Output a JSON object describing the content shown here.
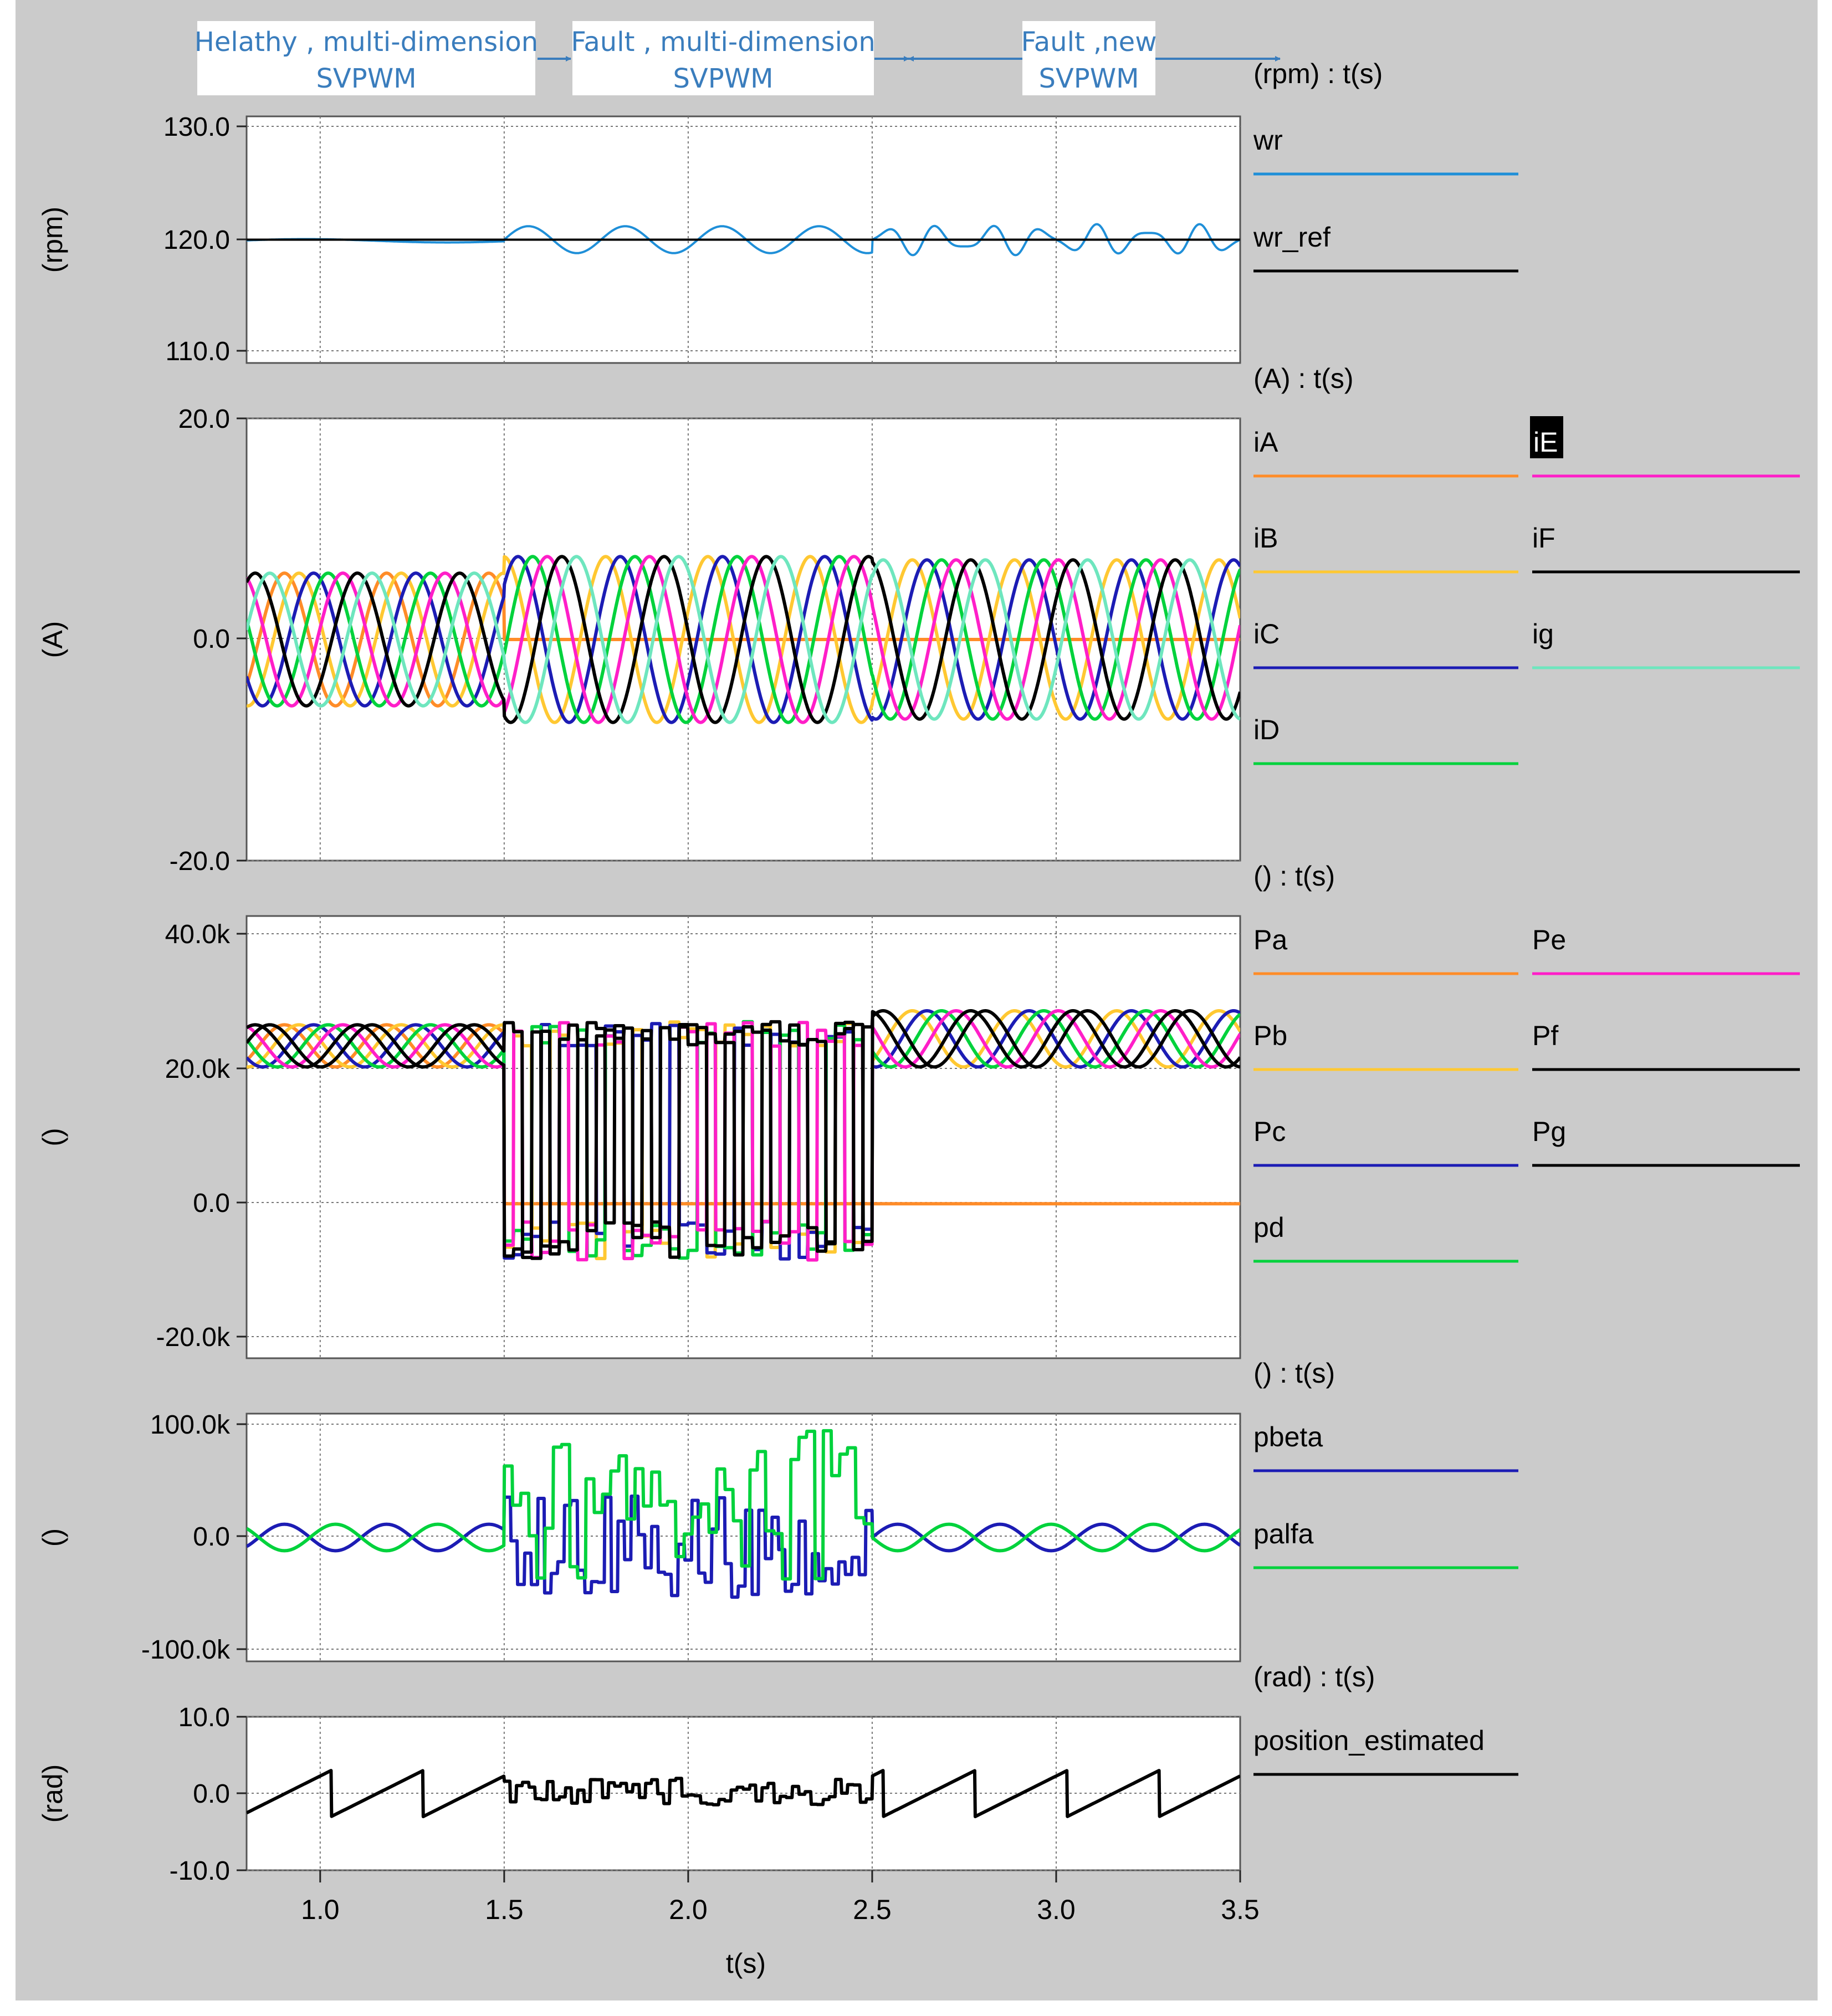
{
  "annotations": [
    {
      "line1": "Helathy , multi-dimension",
      "line2": "SVPWM"
    },
    {
      "line1": "Fault , multi-dimension",
      "line2": "SVPWM"
    },
    {
      "line1": "Fault ,new",
      "line2": "SVPWM"
    }
  ],
  "colors": {
    "background": "#cbcbcb",
    "plot_bg": "#ffffff",
    "annotation_text": "#3a7dbd",
    "arrow": "#3a7dbd"
  },
  "x_axis": {
    "label": "t(s)",
    "ticks": [
      "1.0",
      "1.5",
      "2.0",
      "2.5",
      "3.0",
      "3.5"
    ],
    "range": [
      0.8,
      3.5
    ]
  },
  "chart_data": [
    {
      "type": "line",
      "header": "(rpm) : t(s)",
      "ylabel": "(rpm)",
      "yticks": [
        "130.0",
        "120.0",
        "110.0"
      ],
      "ylim": [
        109.0,
        131.0
      ],
      "series": [
        {
          "name": "wr",
          "color": "#1f8fd8"
        },
        {
          "name": "wr_ref",
          "color": "#000000"
        }
      ]
    },
    {
      "type": "line",
      "header": "(A) : t(s)",
      "ylabel": "(A)",
      "yticks": [
        "20.0",
        "0.0",
        "-20.0"
      ],
      "ylim": [
        -20.0,
        20.0
      ],
      "series": [
        {
          "name": "iA",
          "color": "#ff8c28"
        },
        {
          "name": "iB",
          "color": "#ffc832"
        },
        {
          "name": "iC",
          "color": "#1c1cb4"
        },
        {
          "name": "iD",
          "color": "#00d23c"
        },
        {
          "name": "iE",
          "color": "#ff1ec8"
        },
        {
          "name": "iF",
          "color": "#000000"
        },
        {
          "name": "ig",
          "color": "#6ee6be"
        }
      ]
    },
    {
      "type": "line",
      "header": "() : t(s)",
      "ylabel": "()",
      "yticks": [
        "40.0k",
        "20.0k",
        "0.0",
        "-20.0k"
      ],
      "ylim": [
        -22000,
        41000
      ],
      "series": [
        {
          "name": "Pa",
          "color": "#ff8c28"
        },
        {
          "name": "Pb",
          "color": "#ffc832"
        },
        {
          "name": "Pc",
          "color": "#1c1cb4"
        },
        {
          "name": "pd",
          "color": "#00d23c"
        },
        {
          "name": "Pe",
          "color": "#ff1ec8"
        },
        {
          "name": "Pf",
          "color": "#000000"
        },
        {
          "name": "Pg",
          "color": "#000000"
        }
      ]
    },
    {
      "type": "line",
      "header": "() : t(s)",
      "ylabel": "()",
      "yticks": [
        "100.0k",
        "0.0",
        "-100.0k"
      ],
      "ylim": [
        -103000,
        103000
      ],
      "series": [
        {
          "name": "pbeta",
          "color": "#1c1cb4"
        },
        {
          "name": "palfa",
          "color": "#00d23c"
        }
      ]
    },
    {
      "type": "line",
      "header": "(rad) : t(s)",
      "ylabel": "(rad)",
      "yticks": [
        "10.0",
        "0.0",
        "-10.0"
      ],
      "ylim": [
        -10.0,
        10.0
      ],
      "series": [
        {
          "name": "position_estimated",
          "color": "#000000"
        }
      ]
    }
  ]
}
